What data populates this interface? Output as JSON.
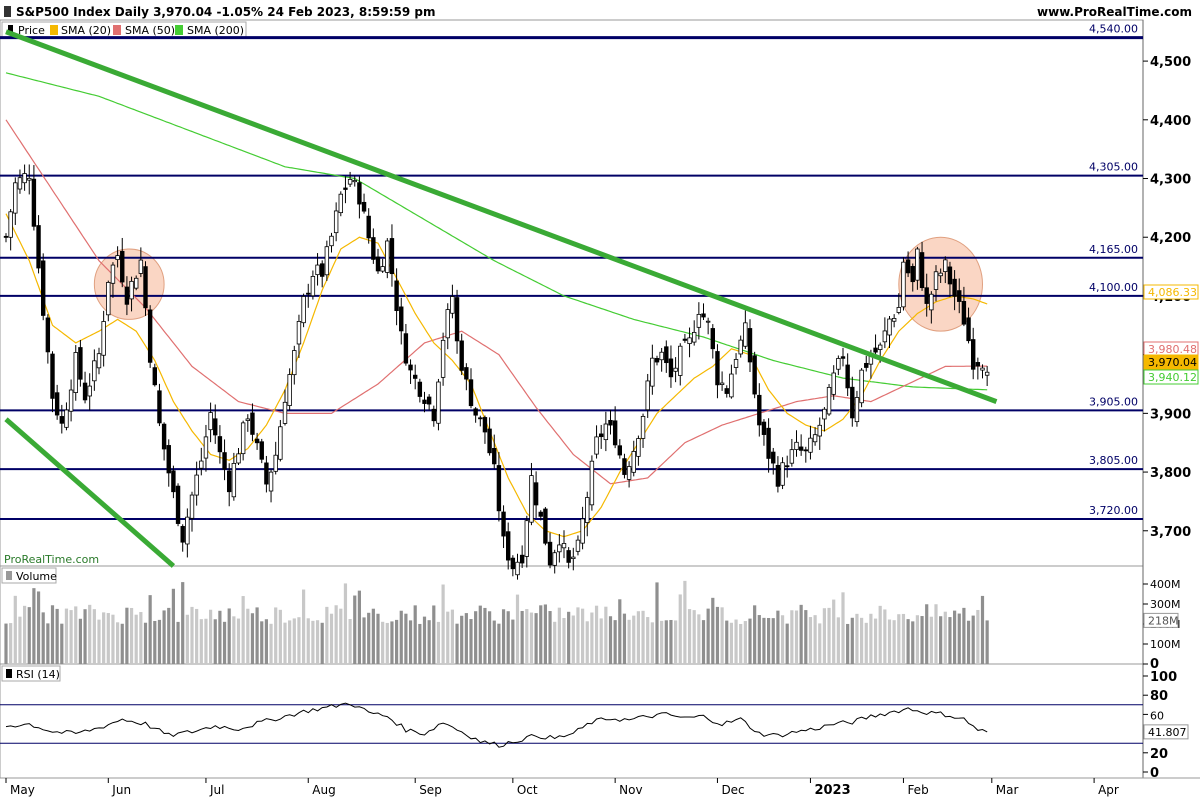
{
  "header": {
    "title": "S&P500 Index Daily 3,970.04 -1.05% 24 Feb 2023, 8:59:59 pm",
    "site": "www.ProRealTime.com"
  },
  "legend": {
    "price": "Price",
    "sma20": "SMA (20)",
    "sma50": "SMA (50)",
    "sma200": "SMA (200)"
  },
  "watermark": "ProRealTime.com",
  "volume_label": "Volume",
  "rsi_label": "RSI (14)",
  "colors": {
    "sma20": "#f5b800",
    "sma50": "#e07070",
    "sma200": "#44cc33",
    "trend": "#3aaa35",
    "level": "#000066",
    "highlight": "#f8c8b0"
  },
  "chart_data": {
    "type": "candlestick",
    "price_axis": {
      "range": [
        3640,
        4570
      ],
      "ticks": [
        "4,500",
        "4,400",
        "4,300",
        "4,200",
        "4,100",
        "4,000",
        "3,900",
        "3,800",
        "3,700"
      ],
      "tick_values": [
        4500,
        4400,
        4300,
        4200,
        4100,
        4000,
        3900,
        3800,
        3700
      ]
    },
    "level_lines": [
      {
        "value": 4540,
        "label": "4,540.00"
      },
      {
        "value": 4305,
        "label": "4,305.00"
      },
      {
        "value": 4165,
        "label": "4,165.00"
      },
      {
        "value": 4100,
        "label": "4,100.00"
      },
      {
        "value": 3905,
        "label": "3,905.00"
      },
      {
        "value": 3805,
        "label": "3,805.00"
      },
      {
        "value": 3720,
        "label": "3,720.00"
      }
    ],
    "price_badges": [
      {
        "value": 4086.33,
        "label": "4,086.33",
        "color": "#f5b800"
      },
      {
        "value": 3980.48,
        "label": "3,980.48",
        "color": "#e07070"
      },
      {
        "value": 3970.04,
        "label": "3,970.04",
        "color": "#f5b800"
      },
      {
        "value": 3940.12,
        "label": "3,940.12",
        "color": "#44cc33"
      }
    ],
    "x_axis": {
      "labels": [
        "May",
        "Jun",
        "Jul",
        "Aug",
        "Sep",
        "Oct",
        "Nov",
        "Dec",
        "2023",
        "Feb",
        "Mar",
        "Apr"
      ],
      "bar_index": [
        0,
        22,
        43,
        65,
        88,
        109,
        131,
        153,
        173,
        193,
        212,
        234
      ]
    },
    "volume_axis": {
      "range": [
        0,
        450
      ],
      "ticks": [
        "400M",
        "300M",
        "200M",
        "100M",
        "0"
      ],
      "tick_values": [
        400,
        300,
        200,
        100,
        0
      ],
      "last": "218M",
      "last_value": 218
    },
    "rsi_axis": {
      "range": [
        0,
        100
      ],
      "ticks": [
        "100",
        "80",
        "60",
        "20",
        "0"
      ],
      "tick_values": [
        100,
        80,
        60,
        20,
        0
      ],
      "overbought": 70,
      "oversold": 30,
      "last": "41.807",
      "last_value": 41.807
    },
    "anchors": [
      [
        0,
        4200
      ],
      [
        2,
        4290
      ],
      [
        5,
        4310
      ],
      [
        7,
        4150
      ],
      [
        10,
        3930
      ],
      [
        12,
        3880
      ],
      [
        15,
        3990
      ],
      [
        17,
        3930
      ],
      [
        20,
        4000
      ],
      [
        22,
        4130
      ],
      [
        24,
        4170
      ],
      [
        26,
        4100
      ],
      [
        29,
        4160
      ],
      [
        31,
        4000
      ],
      [
        33,
        3880
      ],
      [
        36,
        3760
      ],
      [
        38,
        3690
      ],
      [
        40,
        3760
      ],
      [
        42,
        3820
      ],
      [
        44,
        3900
      ],
      [
        46,
        3830
      ],
      [
        48,
        3780
      ],
      [
        50,
        3840
      ],
      [
        52,
        3900
      ],
      [
        54,
        3840
      ],
      [
        56,
        3780
      ],
      [
        58,
        3830
      ],
      [
        60,
        3930
      ],
      [
        62,
        4000
      ],
      [
        64,
        4090
      ],
      [
        66,
        4140
      ],
      [
        68,
        4140
      ],
      [
        70,
        4200
      ],
      [
        72,
        4270
      ],
      [
        74,
        4300
      ],
      [
        76,
        4270
      ],
      [
        78,
        4200
      ],
      [
        80,
        4140
      ],
      [
        82,
        4190
      ],
      [
        83,
        4140
      ],
      [
        85,
        4030
      ],
      [
        87,
        3970
      ],
      [
        90,
        3930
      ],
      [
        92,
        3900
      ],
      [
        94,
        4030
      ],
      [
        96,
        4100
      ],
      [
        97,
        4020
      ],
      [
        99,
        3950
      ],
      [
        101,
        3900
      ],
      [
        103,
        3870
      ],
      [
        105,
        3800
      ],
      [
        107,
        3680
      ],
      [
        109,
        3640
      ],
      [
        111,
        3660
      ],
      [
        113,
        3790
      ],
      [
        115,
        3720
      ],
      [
        117,
        3650
      ],
      [
        119,
        3690
      ],
      [
        121,
        3640
      ],
      [
        123,
        3670
      ],
      [
        125,
        3760
      ],
      [
        127,
        3850
      ],
      [
        129,
        3880
      ],
      [
        131,
        3860
      ],
      [
        133,
        3800
      ],
      [
        135,
        3840
      ],
      [
        137,
        3900
      ],
      [
        139,
        3990
      ],
      [
        141,
        4000
      ],
      [
        143,
        3960
      ],
      [
        145,
        4000
      ],
      [
        147,
        4020
      ],
      [
        149,
        4080
      ],
      [
        151,
        4050
      ],
      [
        153,
        3960
      ],
      [
        155,
        3940
      ],
      [
        157,
        4000
      ],
      [
        159,
        4040
      ],
      [
        160,
        3990
      ],
      [
        162,
        3880
      ],
      [
        164,
        3830
      ],
      [
        166,
        3790
      ],
      [
        168,
        3820
      ],
      [
        170,
        3840
      ],
      [
        172,
        3830
      ],
      [
        174,
        3860
      ],
      [
        176,
        3900
      ],
      [
        178,
        3960
      ],
      [
        180,
        4000
      ],
      [
        182,
        3900
      ],
      [
        184,
        3970
      ],
      [
        186,
        4000
      ],
      [
        188,
        4010
      ],
      [
        190,
        4060
      ],
      [
        192,
        4080
      ],
      [
        193,
        4160
      ],
      [
        195,
        4120
      ],
      [
        196,
        4170
      ],
      [
        198,
        4080
      ],
      [
        200,
        4130
      ],
      [
        202,
        4150
      ],
      [
        204,
        4100
      ],
      [
        206,
        4060
      ],
      [
        208,
        3990
      ],
      [
        210,
        3990
      ],
      [
        211,
        3970.04
      ]
    ],
    "sma20_anchors": [
      [
        0,
        4240
      ],
      [
        5,
        4160
      ],
      [
        10,
        4050
      ],
      [
        15,
        4020
      ],
      [
        20,
        4040
      ],
      [
        24,
        4060
      ],
      [
        28,
        4040
      ],
      [
        32,
        3990
      ],
      [
        36,
        3920
      ],
      [
        40,
        3870
      ],
      [
        44,
        3830
      ],
      [
        48,
        3820
      ],
      [
        52,
        3840
      ],
      [
        56,
        3880
      ],
      [
        60,
        3940
      ],
      [
        64,
        4020
      ],
      [
        68,
        4110
      ],
      [
        72,
        4180
      ],
      [
        76,
        4200
      ],
      [
        80,
        4190
      ],
      [
        84,
        4130
      ],
      [
        88,
        4070
      ],
      [
        92,
        4020
      ],
      [
        96,
        3990
      ],
      [
        100,
        3950
      ],
      [
        104,
        3870
      ],
      [
        108,
        3790
      ],
      [
        112,
        3730
      ],
      [
        116,
        3700
      ],
      [
        120,
        3690
      ],
      [
        124,
        3700
      ],
      [
        128,
        3740
      ],
      [
        132,
        3800
      ],
      [
        136,
        3850
      ],
      [
        140,
        3900
      ],
      [
        144,
        3930
      ],
      [
        148,
        3960
      ],
      [
        152,
        3980
      ],
      [
        156,
        4010
      ],
      [
        160,
        4000
      ],
      [
        164,
        3940
      ],
      [
        168,
        3900
      ],
      [
        172,
        3880
      ],
      [
        176,
        3870
      ],
      [
        180,
        3890
      ],
      [
        184,
        3930
      ],
      [
        188,
        3990
      ],
      [
        192,
        4040
      ],
      [
        196,
        4070
      ],
      [
        200,
        4090
      ],
      [
        204,
        4100
      ],
      [
        208,
        4095
      ],
      [
        211,
        4086.33
      ]
    ],
    "sma50_anchors": [
      [
        0,
        4400
      ],
      [
        10,
        4280
      ],
      [
        20,
        4160
      ],
      [
        30,
        4080
      ],
      [
        40,
        3980
      ],
      [
        50,
        3920
      ],
      [
        60,
        3900
      ],
      [
        70,
        3900
      ],
      [
        80,
        3950
      ],
      [
        90,
        4020
      ],
      [
        98,
        4040
      ],
      [
        106,
        4000
      ],
      [
        114,
        3910
      ],
      [
        122,
        3830
      ],
      [
        130,
        3780
      ],
      [
        138,
        3790
      ],
      [
        146,
        3850
      ],
      [
        154,
        3880
      ],
      [
        162,
        3900
      ],
      [
        170,
        3920
      ],
      [
        178,
        3930
      ],
      [
        186,
        3920
      ],
      [
        194,
        3950
      ],
      [
        202,
        3980
      ],
      [
        211,
        3980.48
      ]
    ],
    "sma200_anchors": [
      [
        0,
        4480
      ],
      [
        20,
        4440
      ],
      [
        40,
        4380
      ],
      [
        60,
        4320
      ],
      [
        75,
        4300
      ],
      [
        90,
        4230
      ],
      [
        105,
        4160
      ],
      [
        120,
        4100
      ],
      [
        135,
        4060
      ],
      [
        150,
        4030
      ],
      [
        165,
        3990
      ],
      [
        180,
        3960
      ],
      [
        195,
        3945
      ],
      [
        211,
        3940.12
      ]
    ],
    "trendlines": [
      {
        "from": [
          0,
          4550
        ],
        "to": [
          213,
          3920
        ]
      },
      {
        "from": [
          0,
          3890
        ],
        "to": [
          36,
          3640
        ]
      }
    ],
    "highlight_ellipses": [
      {
        "center": [
          26.5,
          4120
        ],
        "radius_bars": 7.5,
        "radius_value": 60
      },
      {
        "center": [
          201,
          4120
        ],
        "radius_bars": 9,
        "radius_value": 80
      }
    ],
    "rsi_anchors": [
      [
        0,
        48
      ],
      [
        5,
        50
      ],
      [
        10,
        42
      ],
      [
        15,
        40
      ],
      [
        20,
        46
      ],
      [
        25,
        55
      ],
      [
        30,
        50
      ],
      [
        35,
        38
      ],
      [
        40,
        42
      ],
      [
        45,
        48
      ],
      [
        50,
        45
      ],
      [
        55,
        52
      ],
      [
        60,
        58
      ],
      [
        65,
        64
      ],
      [
        70,
        68
      ],
      [
        74,
        72
      ],
      [
        78,
        62
      ],
      [
        82,
        58
      ],
      [
        86,
        44
      ],
      [
        90,
        40
      ],
      [
        94,
        52
      ],
      [
        98,
        42
      ],
      [
        102,
        32
      ],
      [
        106,
        28
      ],
      [
        110,
        33
      ],
      [
        114,
        38
      ],
      [
        118,
        35
      ],
      [
        122,
        40
      ],
      [
        126,
        52
      ],
      [
        130,
        56
      ],
      [
        134,
        54
      ],
      [
        138,
        58
      ],
      [
        142,
        60
      ],
      [
        146,
        56
      ],
      [
        150,
        58
      ],
      [
        154,
        50
      ],
      [
        158,
        55
      ],
      [
        162,
        40
      ],
      [
        166,
        38
      ],
      [
        170,
        42
      ],
      [
        174,
        45
      ],
      [
        178,
        50
      ],
      [
        182,
        52
      ],
      [
        186,
        58
      ],
      [
        190,
        62
      ],
      [
        194,
        66
      ],
      [
        198,
        62
      ],
      [
        202,
        60
      ],
      [
        206,
        55
      ],
      [
        209,
        44
      ],
      [
        211,
        41.807
      ]
    ]
  }
}
